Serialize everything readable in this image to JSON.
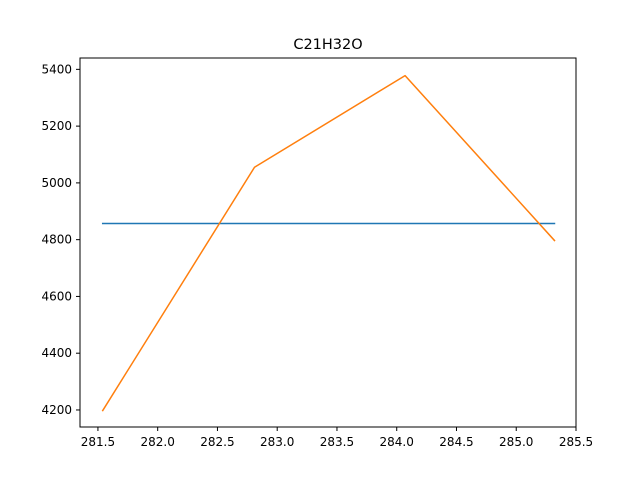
{
  "chart_data": {
    "type": "line",
    "title": "C21H32O",
    "xlabel": "",
    "ylabel": "",
    "xlim": [
      281.35,
      285.5
    ],
    "ylim": [
      4140,
      5440
    ],
    "x_ticks": [
      281.5,
      282.0,
      282.5,
      283.0,
      283.5,
      284.0,
      284.5,
      285.0,
      285.5
    ],
    "x_tick_labels": [
      "281.5",
      "282.0",
      "282.5",
      "283.0",
      "283.5",
      "284.0",
      "284.5",
      "285.0",
      "285.5"
    ],
    "y_ticks": [
      4200,
      4400,
      4600,
      4800,
      5000,
      5200,
      5400
    ],
    "y_tick_labels": [
      "4200",
      "4400",
      "4600",
      "4800",
      "5000",
      "5200",
      "5400"
    ],
    "grid": false,
    "series": [
      {
        "color": "#1f77b4",
        "points": [
          [
            281.54,
            4857
          ],
          [
            285.32,
            4857
          ]
        ]
      },
      {
        "color": "#ff7f0e",
        "points": [
          [
            281.54,
            4198
          ],
          [
            282.81,
            5055
          ],
          [
            284.07,
            5378
          ],
          [
            285.32,
            4797
          ]
        ]
      }
    ]
  }
}
